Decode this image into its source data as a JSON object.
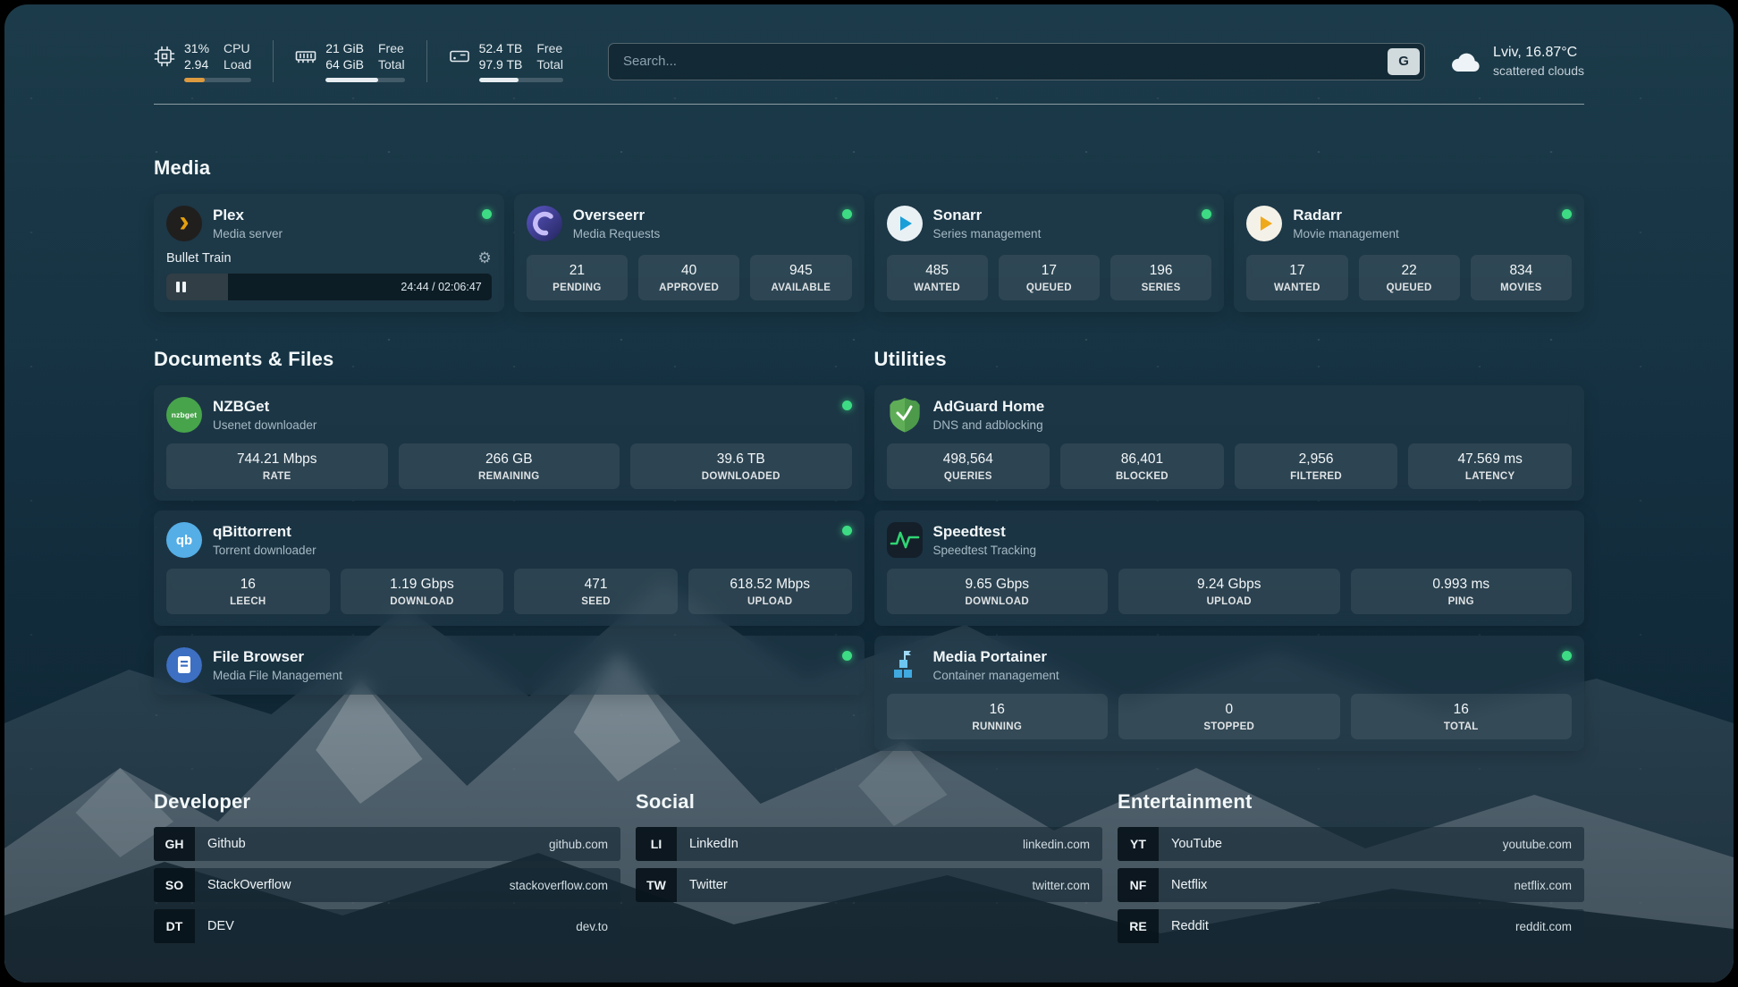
{
  "colors": {
    "status_online": "#3ddc84",
    "cpu_bar": "#dd9a3f",
    "bar_light": "#e7edf0"
  },
  "header": {
    "cpu": {
      "values": [
        "31%",
        "2.94"
      ],
      "labels": [
        "CPU",
        "Load"
      ],
      "bar_percent": 31
    },
    "memory": {
      "values": [
        "21 GiB",
        "64 GiB"
      ],
      "labels": [
        "Free",
        "Total"
      ],
      "bar_percent": 67
    },
    "disk": {
      "values": [
        "52.4 TB",
        "97.9 TB"
      ],
      "labels": [
        "Free",
        "Total"
      ],
      "bar_percent": 47
    },
    "search": {
      "placeholder": "Search...",
      "engine_button": "G"
    },
    "weather": {
      "location": "Lviv, 16.87°C",
      "condition": "scattered clouds"
    }
  },
  "sections": {
    "media": {
      "title": "Media",
      "plex": {
        "name": "Plex",
        "subtitle": "Media server",
        "online": true,
        "now_playing": {
          "title": "Bullet Train",
          "time": "24:44 / 02:06:47",
          "progress_percent": 19
        }
      },
      "overseerr": {
        "name": "Overseerr",
        "subtitle": "Media Requests",
        "online": true,
        "stats": [
          {
            "value": "21",
            "label": "PENDING"
          },
          {
            "value": "40",
            "label": "APPROVED"
          },
          {
            "value": "945",
            "label": "AVAILABLE"
          }
        ]
      },
      "sonarr": {
        "name": "Sonarr",
        "subtitle": "Series management",
        "online": true,
        "stats": [
          {
            "value": "485",
            "label": "WANTED"
          },
          {
            "value": "17",
            "label": "QUEUED"
          },
          {
            "value": "196",
            "label": "SERIES"
          }
        ]
      },
      "radarr": {
        "name": "Radarr",
        "subtitle": "Movie management",
        "online": true,
        "stats": [
          {
            "value": "17",
            "label": "WANTED"
          },
          {
            "value": "22",
            "label": "QUEUED"
          },
          {
            "value": "834",
            "label": "MOVIES"
          }
        ]
      }
    },
    "documents": {
      "title": "Documents & Files",
      "nzbget": {
        "name": "NZBGet",
        "subtitle": "Usenet downloader",
        "icon_text": "nzbget",
        "online": true,
        "stats": [
          {
            "value": "744.21 Mbps",
            "label": "RATE"
          },
          {
            "value": "266 GB",
            "label": "REMAINING"
          },
          {
            "value": "39.6 TB",
            "label": "DOWNLOADED"
          }
        ]
      },
      "qbittorrent": {
        "name": "qBittorrent",
        "subtitle": "Torrent downloader",
        "icon_text": "qb",
        "online": true,
        "stats": [
          {
            "value": "16",
            "label": "LEECH"
          },
          {
            "value": "1.19 Gbps",
            "label": "DOWNLOAD"
          },
          {
            "value": "471",
            "label": "SEED"
          },
          {
            "value": "618.52 Mbps",
            "label": "UPLOAD"
          }
        ]
      },
      "filebrowser": {
        "name": "File Browser",
        "subtitle": "Media File Management",
        "online": true
      }
    },
    "utilities": {
      "title": "Utilities",
      "adguard": {
        "name": "AdGuard Home",
        "subtitle": "DNS and adblocking",
        "stats": [
          {
            "value": "498,564",
            "label": "QUERIES"
          },
          {
            "value": "86,401",
            "label": "BLOCKED"
          },
          {
            "value": "2,956",
            "label": "FILTERED"
          },
          {
            "value": "47.569 ms",
            "label": "LATENCY"
          }
        ]
      },
      "speedtest": {
        "name": "Speedtest",
        "subtitle": "Speedtest Tracking",
        "stats": [
          {
            "value": "9.65 Gbps",
            "label": "DOWNLOAD"
          },
          {
            "value": "9.24 Gbps",
            "label": "UPLOAD"
          },
          {
            "value": "0.993 ms",
            "label": "PING"
          }
        ]
      },
      "portainer": {
        "name": "Media Portainer",
        "subtitle": "Container management",
        "online": true,
        "stats": [
          {
            "value": "16",
            "label": "RUNNING"
          },
          {
            "value": "0",
            "label": "STOPPED"
          },
          {
            "value": "16",
            "label": "TOTAL"
          }
        ]
      }
    },
    "bookmarks": {
      "developer": {
        "title": "Developer",
        "items": [
          {
            "abbr": "GH",
            "name": "Github",
            "url": "github.com"
          },
          {
            "abbr": "SO",
            "name": "StackOverflow",
            "url": "stackoverflow.com"
          },
          {
            "abbr": "DT",
            "name": "DEV",
            "url": "dev.to"
          }
        ]
      },
      "social": {
        "title": "Social",
        "items": [
          {
            "abbr": "LI",
            "name": "LinkedIn",
            "url": "linkedin.com"
          },
          {
            "abbr": "TW",
            "name": "Twitter",
            "url": "twitter.com"
          }
        ]
      },
      "entertainment": {
        "title": "Entertainment",
        "items": [
          {
            "abbr": "YT",
            "name": "YouTube",
            "url": "youtube.com"
          },
          {
            "abbr": "NF",
            "name": "Netflix",
            "url": "netflix.com"
          },
          {
            "abbr": "RE",
            "name": "Reddit",
            "url": "reddit.com"
          }
        ]
      }
    }
  }
}
